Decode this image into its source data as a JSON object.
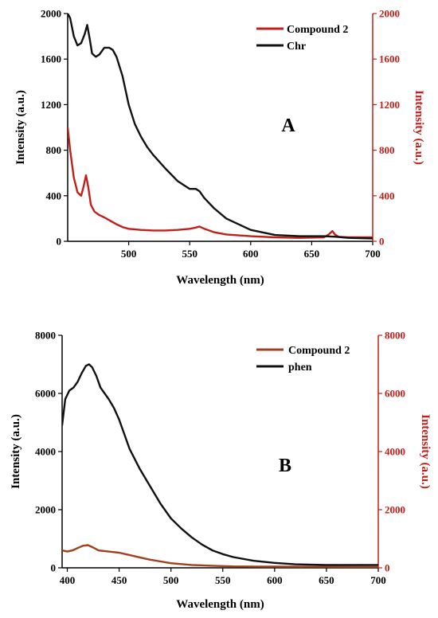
{
  "chart_data": [
    {
      "type": "line",
      "panel_label": "A",
      "xlabel": "Wavelength (nm)",
      "ylabel_left": "Intensity (a.u.)",
      "ylabel_right": "Intensity (a.u.)",
      "xlim": [
        450,
        700
      ],
      "ylim_left": [
        0,
        2000
      ],
      "ylim_right": [
        0,
        2000
      ],
      "x_ticks": [
        "500",
        "550",
        "600",
        "650",
        "700"
      ],
      "y_ticks_left": [
        "0",
        "400",
        "800",
        "1200",
        "1600",
        "2000"
      ],
      "y_ticks_right": [
        "0",
        "400",
        "800",
        "1200",
        "1600",
        "2000"
      ],
      "legend_position": "top-right",
      "grid": false,
      "series": [
        {
          "name": "Compound 2",
          "color": "#c0201a",
          "axis": "right",
          "x": [
            450,
            452,
            455,
            458,
            461,
            463,
            465,
            467,
            469,
            472,
            476,
            480,
            485,
            490,
            495,
            500,
            510,
            520,
            530,
            540,
            550,
            555,
            558,
            562,
            570,
            580,
            600,
            620,
            640,
            660,
            664,
            667,
            669,
            672,
            680,
            700
          ],
          "y": [
            1000,
            800,
            560,
            430,
            400,
            480,
            580,
            470,
            320,
            260,
            230,
            210,
            180,
            150,
            125,
            110,
            100,
            95,
            95,
            100,
            110,
            120,
            130,
            110,
            80,
            60,
            45,
            35,
            30,
            35,
            60,
            90,
            60,
            40,
            35,
            35
          ]
        },
        {
          "name": "Chr",
          "color": "#111111",
          "axis": "left",
          "x": [
            450,
            452,
            455,
            458,
            461,
            464,
            466,
            468,
            470,
            473,
            476,
            480,
            484,
            487,
            490,
            495,
            500,
            505,
            510,
            515,
            520,
            530,
            540,
            550,
            555,
            558,
            562,
            570,
            580,
            600,
            620,
            640,
            660,
            670,
            680,
            700
          ],
          "y": [
            2000,
            1960,
            1800,
            1720,
            1740,
            1820,
            1900,
            1780,
            1650,
            1620,
            1640,
            1700,
            1700,
            1680,
            1620,
            1450,
            1200,
            1030,
            920,
            830,
            760,
            640,
            530,
            460,
            460,
            440,
            380,
            290,
            200,
            100,
            55,
            45,
            45,
            40,
            30,
            25
          ]
        }
      ]
    },
    {
      "type": "line",
      "panel_label": "B",
      "xlabel": "Wavelength (nm)",
      "ylabel_left": "Intensity (a.u.)",
      "ylabel_right": "Intensity (a.u.)",
      "xlim": [
        395,
        700
      ],
      "ylim_left": [
        0,
        8000
      ],
      "ylim_right": [
        0,
        8000
      ],
      "x_ticks": [
        "400",
        "450",
        "500",
        "550",
        "600",
        "650",
        "700"
      ],
      "y_ticks_left": [
        "0",
        "2000",
        "4000",
        "6000",
        "8000"
      ],
      "y_ticks_right": [
        "0",
        "2000",
        "4000",
        "6000",
        "8000"
      ],
      "legend_position": "top-right",
      "grid": false,
      "series": [
        {
          "name": "Compound 2",
          "color": "#a0401f",
          "axis": "right",
          "x": [
            395,
            400,
            405,
            410,
            415,
            420,
            425,
            430,
            440,
            450,
            460,
            470,
            480,
            490,
            500,
            520,
            540,
            560,
            580,
            600,
            650,
            700
          ],
          "y": [
            600,
            560,
            600,
            680,
            760,
            780,
            700,
            600,
            560,
            520,
            440,
            360,
            280,
            220,
            160,
            100,
            70,
            50,
            45,
            40,
            35,
            30
          ]
        },
        {
          "name": "phen",
          "color": "#111111",
          "axis": "left",
          "x": [
            395,
            398,
            402,
            406,
            410,
            414,
            418,
            421,
            424,
            428,
            432,
            436,
            440,
            445,
            450,
            455,
            460,
            470,
            480,
            490,
            500,
            510,
            520,
            530,
            540,
            550,
            560,
            580,
            600,
            620,
            650,
            700
          ],
          "y": [
            4900,
            5800,
            6100,
            6200,
            6400,
            6700,
            6950,
            7000,
            6900,
            6600,
            6200,
            6000,
            5800,
            5500,
            5100,
            4600,
            4100,
            3400,
            2800,
            2200,
            1700,
            1350,
            1050,
            800,
            600,
            470,
            370,
            240,
            170,
            120,
            100,
            100
          ]
        }
      ]
    }
  ]
}
